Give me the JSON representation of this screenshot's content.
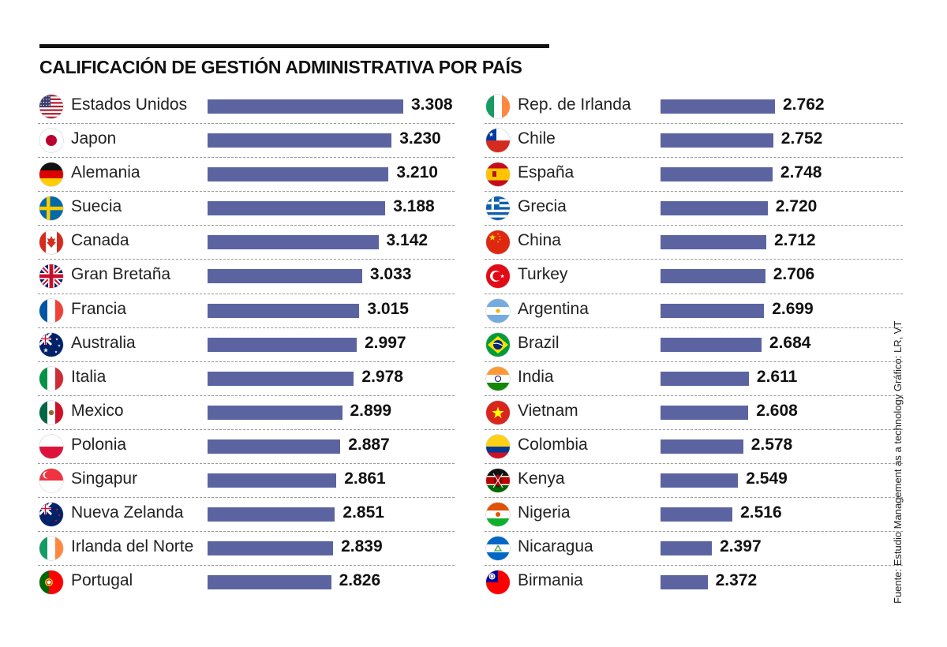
{
  "header": {
    "title": "CALIFICACIÓN DE GESTIÓN ADMINISTRATIVA POR PAÍS"
  },
  "footer": {
    "source": "Fuente: Estudio Management as a technology   Gráfico: LR, VT"
  },
  "colors": {
    "bar": "#5b64a0",
    "rule": "#111111"
  },
  "chart_data": {
    "type": "bar",
    "orientation": "horizontal",
    "title": "CALIFICACIÓN DE GESTIÓN ADMINISTRATIVA POR PAÍS",
    "columns": [
      {
        "rows": [
          {
            "country": "Estados Unidos",
            "value": 3.308,
            "label": "3.308",
            "flag": "us"
          },
          {
            "country": "Japon",
            "value": 3.23,
            "label": "3.230",
            "flag": "jp"
          },
          {
            "country": "Alemania",
            "value": 3.21,
            "label": "3.210",
            "flag": "de"
          },
          {
            "country": "Suecia",
            "value": 3.188,
            "label": "3.188",
            "flag": "se"
          },
          {
            "country": "Canada",
            "value": 3.142,
            "label": "3.142",
            "flag": "ca"
          },
          {
            "country": "Gran Bretaña",
            "value": 3.033,
            "label": "3.033",
            "flag": "gb"
          },
          {
            "country": "Francia",
            "value": 3.015,
            "label": "3.015",
            "flag": "fr"
          },
          {
            "country": "Australia",
            "value": 2.997,
            "label": "2.997",
            "flag": "au"
          },
          {
            "country": "Italia",
            "value": 2.978,
            "label": "2.978",
            "flag": "it"
          },
          {
            "country": "Mexico",
            "value": 2.899,
            "label": "2.899",
            "flag": "mx"
          },
          {
            "country": "Polonia",
            "value": 2.887,
            "label": "2.887",
            "flag": "pl"
          },
          {
            "country": "Singapur",
            "value": 2.861,
            "label": "2.861",
            "flag": "sg"
          },
          {
            "country": "Nueva Zelanda",
            "value": 2.851,
            "label": "2.851",
            "flag": "nz"
          },
          {
            "country": "Irlanda del Norte",
            "value": 2.839,
            "label": "2.839",
            "flag": "ie"
          },
          {
            "country": "Portugal",
            "value": 2.826,
            "label": "2.826",
            "flag": "pt"
          }
        ]
      },
      {
        "rows": [
          {
            "country": "Rep. de Irlanda",
            "value": 2.762,
            "label": "2.762",
            "flag": "ie"
          },
          {
            "country": "Chile",
            "value": 2.752,
            "label": "2.752",
            "flag": "cl"
          },
          {
            "country": "España",
            "value": 2.748,
            "label": "2.748",
            "flag": "es"
          },
          {
            "country": "Grecia",
            "value": 2.72,
            "label": "2.720",
            "flag": "gr"
          },
          {
            "country": "China",
            "value": 2.712,
            "label": "2.712",
            "flag": "cn"
          },
          {
            "country": "Turkey",
            "value": 2.706,
            "label": "2.706",
            "flag": "tr"
          },
          {
            "country": "Argentina",
            "value": 2.699,
            "label": "2.699",
            "flag": "ar"
          },
          {
            "country": "Brazil",
            "value": 2.684,
            "label": "2.684",
            "flag": "br"
          },
          {
            "country": "India",
            "value": 2.611,
            "label": "2.611",
            "flag": "in"
          },
          {
            "country": "Vietnam",
            "value": 2.608,
            "label": "2.608",
            "flag": "vn"
          },
          {
            "country": "Colombia",
            "value": 2.578,
            "label": "2.578",
            "flag": "co"
          },
          {
            "country": "Kenya",
            "value": 2.549,
            "label": "2.549",
            "flag": "ke"
          },
          {
            "country": "Nigeria",
            "value": 2.516,
            "label": "2.516",
            "flag": "ne"
          },
          {
            "country": "Nicaragua",
            "value": 2.397,
            "label": "2.397",
            "flag": "ni"
          },
          {
            "country": "Birmania",
            "value": 2.372,
            "label": "2.372",
            "flag": "tw"
          }
        ]
      }
    ],
    "grid": false,
    "legend": "none"
  }
}
